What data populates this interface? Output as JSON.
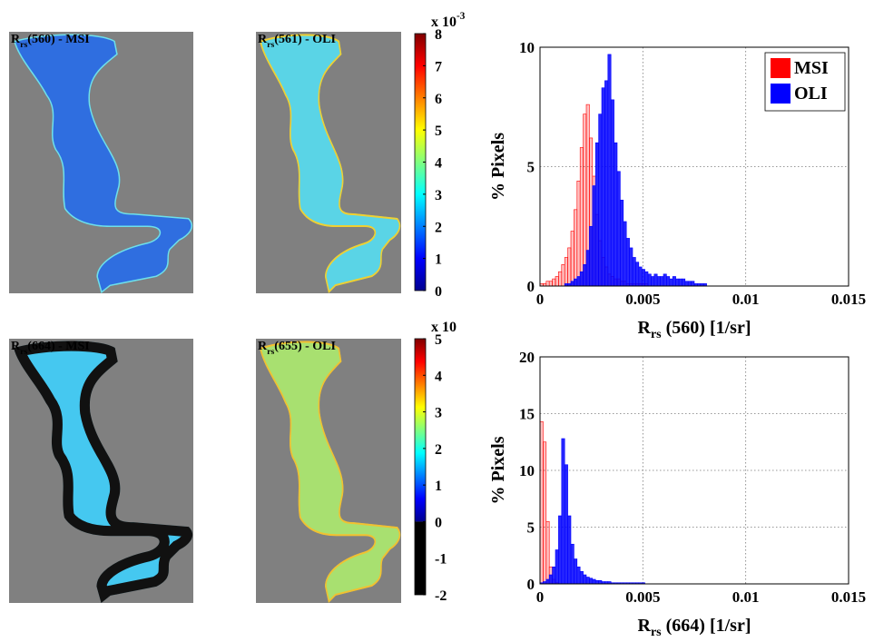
{
  "chart_data": [
    {
      "type": "map",
      "title": [
        "R",
        "rs",
        "(560) - MSI"
      ]
    },
    {
      "type": "map",
      "title": [
        "R",
        "rs",
        "(561) - OLI"
      ]
    },
    {
      "type": "colorbar",
      "colormap": "jet",
      "ylim": [
        0,
        8
      ],
      "yticks": [
        0,
        1,
        2,
        3,
        4,
        5,
        6,
        7,
        8
      ],
      "multiplier": [
        "x 10",
        "-3"
      ]
    },
    {
      "type": "histogram",
      "xlabel": [
        "R",
        "rs",
        " (560) [1/sr]"
      ],
      "ylabel": "% Pixels",
      "xlim": [
        0,
        0.015
      ],
      "xticks": [
        0,
        0.005,
        0.01,
        0.015
      ],
      "ylim": [
        0,
        10
      ],
      "yticks": [
        0,
        5,
        10
      ],
      "grid": true,
      "legend": "upper right",
      "bins": [
        0,
        0.00015,
        0.0003,
        0.00045,
        0.0006,
        0.00075,
        0.0009,
        0.00105,
        0.0012,
        0.00135,
        0.0015,
        0.00165,
        0.0018,
        0.00195,
        0.0021,
        0.00225,
        0.0024,
        0.00255,
        0.0027,
        0.00285,
        0.003,
        0.00315,
        0.0033,
        0.00345,
        0.0036,
        0.00375,
        0.0039,
        0.00405,
        0.0042,
        0.00435,
        0.0045,
        0.00465,
        0.0048,
        0.00495,
        0.0051,
        0.00525,
        0.0054,
        0.00555,
        0.0057,
        0.00585,
        0.006,
        0.00615,
        0.0063,
        0.00645,
        0.0066,
        0.00675,
        0.0069,
        0.00705,
        0.0072,
        0.00735,
        0.0075,
        0.00765,
        0.0078,
        0.00795,
        0.0081,
        0.00825,
        0.0084,
        0.00855,
        0.0087,
        0.00885,
        0.009
      ],
      "series": [
        {
          "name": "MSI",
          "color": "#ff0000",
          "values": [
            0.1,
            0.1,
            0.2,
            0.2,
            0.3,
            0.4,
            0.6,
            0.9,
            1.2,
            1.6,
            2.3,
            3.2,
            4.4,
            5.8,
            7.2,
            7.6,
            6.2,
            4.6,
            3.0,
            1.9,
            1.2,
            0.8,
            0.5,
            0.4,
            0.3,
            0.3,
            0.2,
            0.2,
            0.1,
            0.1,
            0.1,
            0.1,
            0.1,
            0.1,
            0.1,
            0,
            0,
            0,
            0,
            0,
            0,
            0,
            0,
            0,
            0,
            0,
            0,
            0,
            0,
            0,
            0,
            0,
            0,
            0,
            0,
            0,
            0,
            0,
            0,
            0
          ]
        },
        {
          "name": "OLI",
          "color": "#0000ff",
          "values": [
            0,
            0,
            0,
            0,
            0,
            0,
            0,
            0,
            0.1,
            0.1,
            0.2,
            0.3,
            0.4,
            0.6,
            0.9,
            1.5,
            2.5,
            4.2,
            6.0,
            7.2,
            8.3,
            8.6,
            9.7,
            7.8,
            6.0,
            4.8,
            3.6,
            2.7,
            2.0,
            1.6,
            1.2,
            1.0,
            0.8,
            0.7,
            0.6,
            0.5,
            0.4,
            0.5,
            0.4,
            0.4,
            0.5,
            0.4,
            0.3,
            0.4,
            0.3,
            0.3,
            0.3,
            0.2,
            0.2,
            0.2,
            0.1,
            0.1,
            0.1,
            0.1,
            0,
            0,
            0,
            0,
            0,
            0
          ]
        }
      ]
    },
    {
      "type": "map",
      "title": [
        "R",
        "rs",
        "(664) - MSI"
      ]
    },
    {
      "type": "map",
      "title": [
        "R",
        "rs",
        "(655) - OLI"
      ]
    },
    {
      "type": "colorbar",
      "colormap": "jet",
      "ylim": [
        -2,
        5
      ],
      "yticks": [
        -2,
        -1,
        0,
        1,
        2,
        3,
        4,
        5
      ],
      "multiplier": [
        "x 10"
      ]
    },
    {
      "type": "histogram",
      "xlabel": [
        "R",
        "rs",
        " (664) [1/sr]"
      ],
      "ylabel": "% Pixels",
      "xlim": [
        0,
        0.015
      ],
      "xticks": [
        0,
        0.005,
        0.01,
        0.015
      ],
      "ylim": [
        0,
        20
      ],
      "yticks": [
        0,
        5,
        10,
        15,
        20
      ],
      "grid": true,
      "bins": [
        0,
        0.00015,
        0.0003,
        0.00045,
        0.0006,
        0.00075,
        0.0009,
        0.00105,
        0.0012,
        0.00135,
        0.0015,
        0.00165,
        0.0018,
        0.00195,
        0.0021,
        0.00225,
        0.0024,
        0.00255,
        0.0027,
        0.00285,
        0.003,
        0.00315,
        0.0033,
        0.00345,
        0.0036,
        0.00375,
        0.0039,
        0.00405,
        0.0042,
        0.00435,
        0.0045,
        0.00465,
        0.0048,
        0.00495,
        0.0051,
        0.00525,
        0.0054,
        0.00555,
        0.0057,
        0.00585,
        0.006,
        0.00615,
        0.0063,
        0.00645,
        0.0066,
        0.00675,
        0.0069,
        0.00705,
        0.0072,
        0.00735,
        0.0075,
        0.00765,
        0.0078,
        0.00795,
        0.0081,
        0.00825,
        0.0084,
        0.00855,
        0.0087,
        0.00885,
        0.009
      ],
      "series": [
        {
          "name": "MSI",
          "color": "#ff0000",
          "values": [
            14.3,
            12.5,
            5.5,
            1.5,
            0.4,
            0.1,
            0,
            0,
            0,
            0,
            0,
            0,
            0,
            0,
            0,
            0,
            0,
            0,
            0,
            0,
            0,
            0,
            0,
            0,
            0,
            0,
            0,
            0,
            0,
            0,
            0,
            0,
            0,
            0,
            0,
            0,
            0,
            0,
            0,
            0,
            0,
            0,
            0,
            0,
            0,
            0,
            0,
            0,
            0,
            0,
            0,
            0,
            0,
            0,
            0,
            0,
            0,
            0,
            0,
            0
          ]
        },
        {
          "name": "OLI",
          "color": "#0000ff",
          "values": [
            0.1,
            0.2,
            0.4,
            0.8,
            1.5,
            3.0,
            6.0,
            12.8,
            10.5,
            6.0,
            3.5,
            2.2,
            1.5,
            1.1,
            0.8,
            0.6,
            0.5,
            0.4,
            0.3,
            0.3,
            0.2,
            0.2,
            0.2,
            0.1,
            0.1,
            0.1,
            0.1,
            0.1,
            0.1,
            0.1,
            0.1,
            0.1,
            0.1,
            0.1,
            0,
            0,
            0,
            0,
            0,
            0,
            0,
            0,
            0,
            0,
            0,
            0,
            0,
            0,
            0,
            0,
            0,
            0,
            0,
            0,
            0,
            0,
            0,
            0,
            0,
            0
          ]
        }
      ]
    }
  ]
}
